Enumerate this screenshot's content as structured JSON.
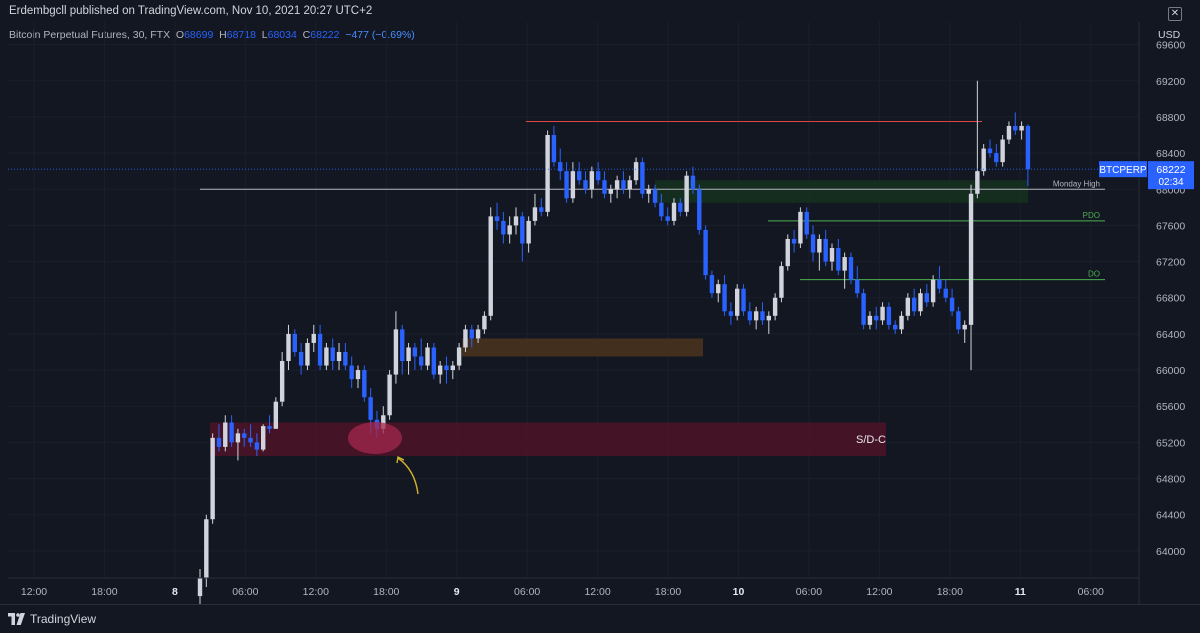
{
  "header": {
    "publish_line": "Erdembgcll published on TradingView.com, Nov 10, 2021 20:27 UTC+2",
    "symbol_name": "Bitcoin Perpetual Futures, 30, FTX",
    "open_label": "O",
    "open_value": "68699",
    "high_label": "H",
    "high_value": "68718",
    "low_label": "L",
    "low_value": "68034",
    "close_label": "C",
    "close_value": "68222",
    "change": "−477 (−0.69%)",
    "currency": "USD",
    "close_icon": "close-icon"
  },
  "footer": {
    "brand": "TradingView",
    "logo_icon": "tradingview-logo-icon"
  },
  "colors": {
    "background": "#131722",
    "up_candle": "#d1d4dc",
    "down_candle": "#2962ff",
    "grid": "#1e222d"
  },
  "chart_data": {
    "type": "candlestick",
    "symbol": "BTCPERP",
    "interval": "30",
    "y_axis": {
      "ticks": [
        64000,
        64400,
        64800,
        65200,
        65600,
        66000,
        66400,
        66800,
        67200,
        67600,
        68000,
        68400,
        68800,
        69200,
        69600
      ],
      "ylim": [
        63700,
        69850
      ]
    },
    "x_axis": {
      "ticks": [
        {
          "label": "12:00",
          "bold": false
        },
        {
          "label": "18:00",
          "bold": false
        },
        {
          "label": "8",
          "bold": true
        },
        {
          "label": "06:00",
          "bold": false
        },
        {
          "label": "12:00",
          "bold": false
        },
        {
          "label": "18:00",
          "bold": false
        },
        {
          "label": "9",
          "bold": true
        },
        {
          "label": "06:00",
          "bold": false
        },
        {
          "label": "12:00",
          "bold": false
        },
        {
          "label": "18:00",
          "bold": false
        },
        {
          "label": "10",
          "bold": true
        },
        {
          "label": "06:00",
          "bold": false
        },
        {
          "label": "12:00",
          "bold": false
        },
        {
          "label": "18:00",
          "bold": false
        },
        {
          "label": "11",
          "bold": true
        },
        {
          "label": "06:00",
          "bold": false
        }
      ]
    },
    "candles": [
      [
        63500,
        63800,
        63300,
        63700
      ],
      [
        63700,
        64400,
        63600,
        64350
      ],
      [
        64350,
        65300,
        64300,
        65250
      ],
      [
        65250,
        65400,
        65100,
        65150
      ],
      [
        65150,
        65500,
        65100,
        65420
      ],
      [
        65420,
        65500,
        65150,
        65200
      ],
      [
        65200,
        65350,
        65000,
        65300
      ],
      [
        65300,
        65350,
        65150,
        65250
      ],
      [
        65250,
        65400,
        65150,
        65200
      ],
      [
        65200,
        65300,
        65050,
        65120
      ],
      [
        65120,
        65400,
        65100,
        65380
      ],
      [
        65380,
        65500,
        65300,
        65350
      ],
      [
        65350,
        65700,
        65350,
        65650
      ],
      [
        65650,
        66200,
        65600,
        66100
      ],
      [
        66100,
        66500,
        66000,
        66400
      ],
      [
        66400,
        66450,
        66150,
        66200
      ],
      [
        66200,
        66300,
        65950,
        66050
      ],
      [
        66050,
        66350,
        66000,
        66300
      ],
      [
        66300,
        66500,
        66200,
        66400
      ],
      [
        66400,
        66500,
        66000,
        66050
      ],
      [
        66050,
        66300,
        66000,
        66250
      ],
      [
        66250,
        66350,
        66000,
        66100
      ],
      [
        66100,
        66300,
        66000,
        66200
      ],
      [
        66200,
        66300,
        66000,
        66050
      ],
      [
        66050,
        66150,
        65800,
        65900
      ],
      [
        65900,
        66050,
        65800,
        66000
      ],
      [
        66000,
        66050,
        65650,
        65700
      ],
      [
        65700,
        65800,
        65300,
        65450
      ],
      [
        65450,
        65550,
        65250,
        65350
      ],
      [
        65350,
        65600,
        65300,
        65500
      ],
      [
        65500,
        66000,
        65450,
        65950
      ],
      [
        65950,
        66650,
        65850,
        66450
      ],
      [
        66450,
        66500,
        65950,
        66100
      ],
      [
        66100,
        66300,
        65950,
        66250
      ],
      [
        66250,
        66300,
        66000,
        66150
      ],
      [
        66150,
        66350,
        66000,
        66050
      ],
      [
        66050,
        66300,
        66000,
        66250
      ],
      [
        66250,
        66300,
        65900,
        65950
      ],
      [
        65950,
        66100,
        65850,
        66050
      ],
      [
        66050,
        66150,
        65850,
        66000
      ],
      [
        66000,
        66100,
        65900,
        66050
      ],
      [
        66050,
        66300,
        66000,
        66250
      ],
      [
        66250,
        66500,
        66200,
        66450
      ],
      [
        66450,
        66500,
        66250,
        66350
      ],
      [
        66350,
        66500,
        66300,
        66450
      ],
      [
        66450,
        66650,
        66400,
        66600
      ],
      [
        66600,
        67800,
        66550,
        67700
      ],
      [
        67700,
        67850,
        67550,
        67650
      ],
      [
        67650,
        67750,
        67400,
        67500
      ],
      [
        67500,
        67700,
        67400,
        67600
      ],
      [
        67600,
        67800,
        67500,
        67700
      ],
      [
        67700,
        67750,
        67200,
        67400
      ],
      [
        67400,
        67700,
        67300,
        67650
      ],
      [
        67650,
        67950,
        67600,
        67800
      ],
      [
        67800,
        67900,
        67700,
        67750
      ],
      [
        67750,
        68650,
        67700,
        68600
      ],
      [
        68600,
        68700,
        68250,
        68300
      ],
      [
        68300,
        68450,
        68100,
        68200
      ],
      [
        68200,
        68300,
        67850,
        67900
      ],
      [
        67900,
        68300,
        67850,
        68200
      ],
      [
        68200,
        68300,
        68050,
        68100
      ],
      [
        68100,
        68200,
        67950,
        68000
      ],
      [
        68000,
        68250,
        67900,
        68200
      ],
      [
        68200,
        68300,
        68050,
        68100
      ],
      [
        68100,
        68200,
        67900,
        67950
      ],
      [
        67950,
        68050,
        67850,
        68000
      ],
      [
        68000,
        68150,
        67900,
        68100
      ],
      [
        68100,
        68200,
        67950,
        68000
      ],
      [
        68000,
        68150,
        67900,
        68100
      ],
      [
        68100,
        68350,
        68050,
        68300
      ],
      [
        68300,
        68350,
        67900,
        67950
      ],
      [
        67950,
        68050,
        67850,
        68000
      ],
      [
        68000,
        68050,
        67800,
        67850
      ],
      [
        67850,
        67950,
        67650,
        67700
      ],
      [
        67700,
        67800,
        67600,
        67650
      ],
      [
        67650,
        67900,
        67600,
        67850
      ],
      [
        67850,
        67900,
        67700,
        67750
      ],
      [
        67750,
        68200,
        67700,
        68150
      ],
      [
        68150,
        68250,
        67950,
        68000
      ],
      [
        68000,
        68050,
        67500,
        67550
      ],
      [
        67550,
        67600,
        67000,
        67050
      ],
      [
        67050,
        67100,
        66800,
        66850
      ],
      [
        66850,
        67000,
        66750,
        66950
      ],
      [
        66950,
        67050,
        66600,
        66650
      ],
      [
        66650,
        66750,
        66500,
        66600
      ],
      [
        66600,
        66950,
        66550,
        66900
      ],
      [
        66900,
        66950,
        66600,
        66650
      ],
      [
        66650,
        66750,
        66500,
        66550
      ],
      [
        66550,
        66700,
        66450,
        66650
      ],
      [
        66650,
        66750,
        66500,
        66550
      ],
      [
        66550,
        66650,
        66400,
        66600
      ],
      [
        66600,
        66850,
        66550,
        66800
      ],
      [
        66800,
        67200,
        66750,
        67150
      ],
      [
        67150,
        67500,
        67100,
        67450
      ],
      [
        67450,
        67550,
        67300,
        67400
      ],
      [
        67400,
        67800,
        67350,
        67750
      ],
      [
        67750,
        67800,
        67450,
        67500
      ],
      [
        67500,
        67600,
        67200,
        67300
      ],
      [
        67300,
        67500,
        67100,
        67450
      ],
      [
        67450,
        67550,
        67150,
        67200
      ],
      [
        67200,
        67400,
        67100,
        67350
      ],
      [
        67350,
        67450,
        67050,
        67100
      ],
      [
        67100,
        67300,
        66900,
        67250
      ],
      [
        67250,
        67300,
        66950,
        67000
      ],
      [
        67000,
        67150,
        66800,
        66850
      ],
      [
        66850,
        66900,
        66450,
        66500
      ],
      [
        66500,
        66650,
        66450,
        66600
      ],
      [
        66600,
        66700,
        66450,
        66550
      ],
      [
        66550,
        66750,
        66500,
        66700
      ],
      [
        66700,
        66750,
        66450,
        66500
      ],
      [
        66500,
        66550,
        66400,
        66450
      ],
      [
        66450,
        66650,
        66400,
        66600
      ],
      [
        66600,
        66850,
        66550,
        66800
      ],
      [
        66800,
        66900,
        66600,
        66650
      ],
      [
        66650,
        66900,
        66600,
        66850
      ],
      [
        66850,
        66950,
        66700,
        66750
      ],
      [
        66750,
        67050,
        66700,
        67000
      ],
      [
        67000,
        67150,
        66850,
        66900
      ],
      [
        66900,
        67000,
        66750,
        66800
      ],
      [
        66800,
        66900,
        66600,
        66650
      ],
      [
        66650,
        66700,
        66400,
        66450
      ],
      [
        66450,
        66550,
        66300,
        66500
      ],
      [
        66500,
        68050,
        66000,
        67950
      ],
      [
        67950,
        69200,
        67900,
        68200
      ],
      [
        68200,
        68500,
        68150,
        68450
      ],
      [
        68450,
        68550,
        68350,
        68400
      ],
      [
        68400,
        68500,
        68250,
        68300
      ],
      [
        68300,
        68600,
        68250,
        68550
      ],
      [
        68550,
        68750,
        68500,
        68700
      ],
      [
        68700,
        68850,
        68600,
        68650
      ],
      [
        68650,
        68750,
        68550,
        68700
      ],
      [
        68700,
        68718,
        68034,
        68222
      ]
    ],
    "zones": [
      {
        "name": "S/D-C",
        "label": "S/D-C",
        "from": 65050,
        "to": 65420,
        "color": "#4a1427"
      },
      {
        "name": "orange-zone",
        "label": "",
        "from": 66150,
        "to": 66350,
        "color": "#46321e"
      },
      {
        "name": "green-zone",
        "label": "",
        "from": 67850,
        "to": 68100,
        "color": "#16301f"
      }
    ],
    "levels": [
      {
        "label": "Monday High",
        "value": 68000,
        "color": "#b2b5be"
      },
      {
        "label": "PDO",
        "value": 67650,
        "color": "#4caf50"
      },
      {
        "label": "DO",
        "value": 67000,
        "color": "#4caf50"
      },
      {
        "label": "",
        "value": 68750,
        "color": "#e04545"
      }
    ],
    "current_price": {
      "symbol": "BTCPERP",
      "price": "68222",
      "countdown": "02:34",
      "value": 68222
    },
    "grid": true
  }
}
